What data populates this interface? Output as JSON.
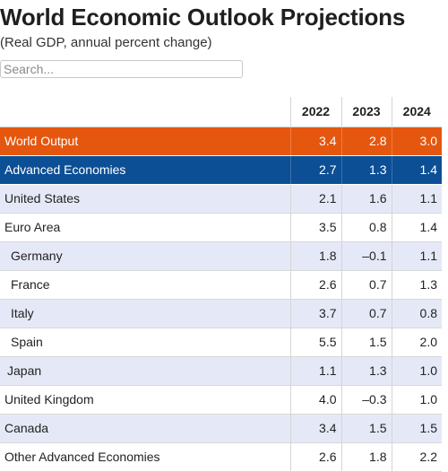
{
  "header": {
    "title": "World Economic Outlook Projections",
    "subtitle": "(Real GDP, annual percent change)"
  },
  "search": {
    "placeholder": "Search..."
  },
  "table": {
    "columns": [
      "",
      "2022",
      "2023",
      "2024"
    ],
    "rows": [
      {
        "label": "World Output",
        "values": [
          "3.4",
          "2.8",
          "3.0"
        ]
      },
      {
        "label": "Advanced Economies",
        "values": [
          "2.7",
          "1.3",
          "1.4"
        ]
      },
      {
        "label": "United States",
        "values": [
          "2.1",
          "1.6",
          "1.1"
        ]
      },
      {
        "label": "Euro Area",
        "values": [
          "3.5",
          "0.8",
          "1.4"
        ]
      },
      {
        "label": "Germany",
        "values": [
          "1.8",
          "–0.1",
          "1.1"
        ]
      },
      {
        "label": "France",
        "values": [
          "2.6",
          "0.7",
          "1.3"
        ]
      },
      {
        "label": "Italy",
        "values": [
          "3.7",
          "0.7",
          "0.8"
        ]
      },
      {
        "label": "Spain",
        "values": [
          "5.5",
          "1.5",
          "2.0"
        ]
      },
      {
        "label": "Japan",
        "values": [
          "1.1",
          "1.3",
          "1.0"
        ]
      },
      {
        "label": "United Kingdom",
        "values": [
          "4.0",
          "–0.3",
          "1.0"
        ]
      },
      {
        "label": "Canada",
        "values": [
          "3.4",
          "1.5",
          "1.5"
        ]
      },
      {
        "label": "Other Advanced Economies",
        "values": [
          "2.6",
          "1.8",
          "2.2"
        ]
      }
    ]
  },
  "colors": {
    "world_output_row": "#e5570f",
    "advanced_economies_row": "#0c4f95",
    "stripe": "#e5e9f7"
  }
}
